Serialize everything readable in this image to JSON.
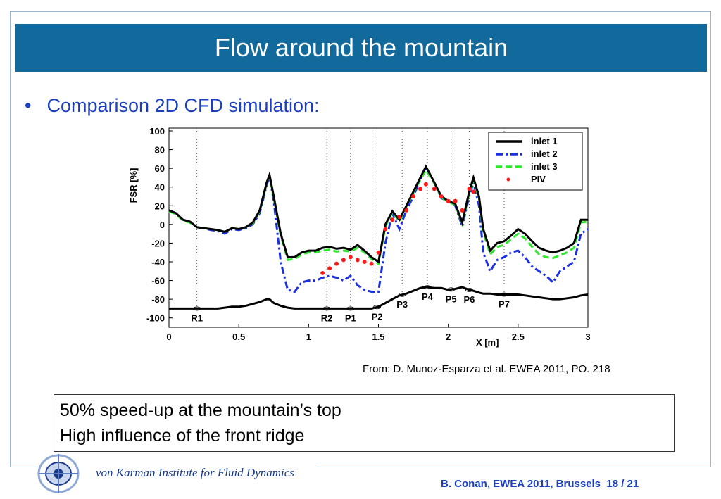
{
  "header": {
    "title": "Flow around the mountain"
  },
  "bullet": "Comparison 2D CFD simulation:",
  "chart_data": {
    "type": "line",
    "x": [
      0,
      0.05,
      0.1,
      0.15,
      0.2,
      0.25,
      0.3,
      0.35,
      0.4,
      0.45,
      0.5,
      0.55,
      0.6,
      0.65,
      0.7,
      0.72,
      0.75,
      0.8,
      0.85,
      0.9,
      0.95,
      1,
      1.05,
      1.1,
      1.15,
      1.2,
      1.25,
      1.3,
      1.35,
      1.4,
      1.45,
      1.5,
      1.55,
      1.6,
      1.65,
      1.7,
      1.75,
      1.8,
      1.84,
      1.9,
      1.95,
      2,
      2.05,
      2.1,
      2.15,
      2.18,
      2.22,
      2.25,
      2.3,
      2.35,
      2.4,
      2.45,
      2.5,
      2.55,
      2.6,
      2.65,
      2.7,
      2.75,
      2.8,
      2.85,
      2.9,
      2.95,
      3
    ],
    "series": [
      {
        "name": "inlet 1",
        "color": "#000000",
        "style": "solid",
        "values": [
          15,
          12,
          5,
          3,
          -3,
          -4,
          -5,
          -6,
          -8,
          -4,
          -5,
          -3,
          2,
          15,
          45,
          53,
          30,
          -10,
          -35,
          -35,
          -30,
          -28,
          -28,
          -25,
          -24,
          -26,
          -25,
          -27,
          -22,
          -28,
          -35,
          -40,
          0,
          14,
          5,
          20,
          35,
          50,
          62,
          45,
          30,
          25,
          22,
          2,
          35,
          50,
          30,
          -5,
          -28,
          -20,
          -18,
          -12,
          -5,
          -10,
          -18,
          -25,
          -28,
          -30,
          -28,
          -25,
          -20,
          5,
          5
        ]
      },
      {
        "name": "inlet 2",
        "color": "#1b2fe0",
        "style": "dashdot",
        "values": [
          15,
          12,
          5,
          3,
          -3,
          -4,
          -6,
          -7,
          -10,
          -5,
          -6,
          -4,
          0,
          12,
          42,
          52,
          25,
          -40,
          -70,
          -72,
          -62,
          -60,
          -60,
          -57,
          -55,
          -57,
          -60,
          -55,
          -65,
          -70,
          -72,
          -72,
          -20,
          12,
          -5,
          15,
          30,
          48,
          60,
          45,
          28,
          25,
          20,
          -2,
          30,
          45,
          20,
          -30,
          -50,
          -38,
          -35,
          -30,
          -28,
          -35,
          -45,
          -50,
          -55,
          -62,
          -50,
          -45,
          -40,
          -10,
          -5
        ]
      },
      {
        "name": "inlet 3",
        "color": "#2ee82e",
        "style": "dashed",
        "values": [
          14,
          11,
          4,
          2,
          -3,
          -4,
          -5,
          -6,
          -8,
          -4,
          -5,
          -3,
          1,
          14,
          44,
          52,
          28,
          -12,
          -38,
          -37,
          -32,
          -30,
          -30,
          -28,
          -27,
          -29,
          -28,
          -29,
          -25,
          -30,
          -37,
          -42,
          -2,
          13,
          3,
          19,
          34,
          48,
          58,
          44,
          29,
          24,
          21,
          1,
          33,
          48,
          28,
          -8,
          -32,
          -24,
          -22,
          -16,
          -10,
          -15,
          -24,
          -32,
          -35,
          -36,
          -33,
          -30,
          -25,
          2,
          3
        ]
      },
      {
        "name": "PIV",
        "color": "#ff1a1a",
        "style": "points",
        "values": [
          null,
          null,
          null,
          null,
          null,
          null,
          null,
          null,
          null,
          null,
          null,
          null,
          null,
          null,
          null,
          null,
          null,
          null,
          null,
          null,
          null,
          null,
          null,
          -52,
          -47,
          -42,
          -38,
          -35,
          -38,
          -40,
          -42,
          -30,
          -5,
          5,
          8,
          15,
          30,
          38,
          43,
          38,
          30,
          25,
          25,
          15,
          38,
          35,
          null,
          null,
          null,
          null,
          null,
          null,
          null,
          null,
          null,
          null,
          null,
          null,
          null,
          null,
          null,
          null,
          null
        ]
      },
      {
        "color": "#000000",
        "style": "solid",
        "values": [
          -90,
          -90,
          -90,
          -90,
          -90,
          -90,
          -90,
          -90,
          -89,
          -88,
          -88,
          -87,
          -85,
          -83,
          -80,
          -80,
          -84,
          -87,
          -89,
          -90,
          -90,
          -90,
          -90,
          -90,
          -90,
          -90,
          -90,
          -90,
          -90,
          -90,
          -90,
          -88,
          -84,
          -80,
          -76,
          -74,
          -71,
          -68,
          -67,
          -68,
          -68,
          -70,
          -69,
          -67,
          -70,
          -71,
          -73,
          -74,
          -74,
          -75,
          -75,
          -75,
          -75,
          -76,
          -77,
          -78,
          -79,
          -80,
          -80,
          -79,
          -78,
          -76,
          -75
        ]
      }
    ],
    "xlim": [
      0,
      3
    ],
    "xticks": [
      0,
      0.5,
      1,
      1.5,
      2,
      2.5,
      3
    ],
    "ylim": [
      -110,
      103
    ],
    "yticks": [
      -100,
      -80,
      -60,
      -40,
      -20,
      0,
      20,
      40,
      60,
      80,
      100
    ],
    "xlabel": "X [m]",
    "ylabel": "FSR [%]",
    "legend": "upper right",
    "annotations": [
      {
        "text": "R1",
        "x": 0.2
      },
      {
        "text": "R2",
        "x": 1.13
      },
      {
        "text": "P1",
        "x": 1.3
      },
      {
        "text": "P2",
        "x": 1.49
      },
      {
        "text": "P3",
        "x": 1.67
      },
      {
        "text": "P4",
        "x": 1.85
      },
      {
        "text": "P5",
        "x": 2.02
      },
      {
        "text": "P6",
        "x": 2.15
      },
      {
        "text": "P7",
        "x": 2.4
      }
    ]
  },
  "source": "From: D. Munoz-Esparza et al. EWEA 2011, PO. 218",
  "notes": [
    "50% speed-up at the mountain’s top",
    "High influence of the front ridge"
  ],
  "footer": {
    "institute": "von Karman Institute for Fluid Dynamics",
    "citation": "B. Conan, EWEA 2011, Brussels",
    "page": "18 / 21"
  }
}
